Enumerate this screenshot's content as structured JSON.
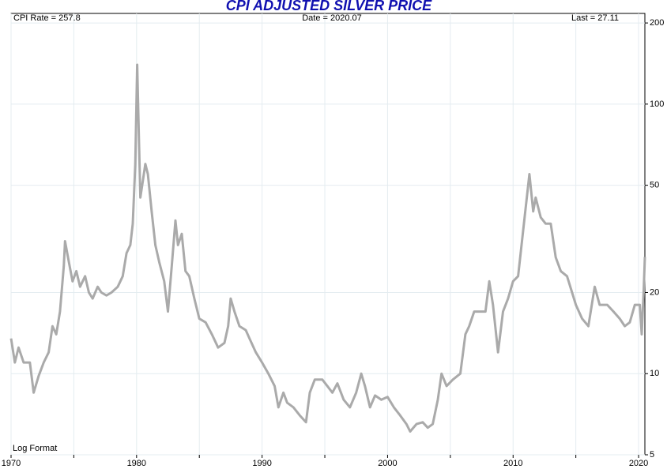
{
  "chart_data": {
    "type": "line",
    "title": "CPI ADJUSTED SILVER PRICE",
    "annotations": {
      "left": "CPI Rate = 257.8",
      "center": "Date = 2020.07",
      "right": "Last = 27.11",
      "bottom_left": "Log Format"
    },
    "log_scale": true,
    "grid": true,
    "xlim": [
      1970,
      2020.5
    ],
    "xticks": [
      1970,
      1980,
      1990,
      2000,
      2010,
      2020
    ],
    "xminorticks": [
      1975,
      1985,
      1995,
      2005,
      2015
    ],
    "ylim": [
      5,
      217
    ],
    "yticks": [
      5,
      10,
      20,
      50,
      100,
      200
    ],
    "series": [
      {
        "color": "#aaaaaa",
        "x": [
          1970.0,
          1970.3,
          1970.6,
          1971.0,
          1971.5,
          1971.8,
          1972.2,
          1972.6,
          1973.0,
          1973.3,
          1973.6,
          1973.9,
          1974.2,
          1974.3,
          1974.6,
          1974.9,
          1975.2,
          1975.5,
          1975.9,
          1976.2,
          1976.5,
          1976.9,
          1977.2,
          1977.6,
          1978.0,
          1978.5,
          1978.9,
          1979.2,
          1979.5,
          1979.7,
          1979.9,
          1980.05,
          1980.2,
          1980.3,
          1980.5,
          1980.7,
          1980.9,
          1981.2,
          1981.5,
          1981.8,
          1982.2,
          1982.5,
          1982.8,
          1983.1,
          1983.3,
          1983.6,
          1983.9,
          1984.2,
          1984.6,
          1985.0,
          1985.5,
          1986.0,
          1986.5,
          1987.0,
          1987.3,
          1987.5,
          1987.8,
          1988.2,
          1988.7,
          1989.0,
          1989.5,
          1990.0,
          1990.5,
          1991.0,
          1991.3,
          1991.7,
          1992.0,
          1992.5,
          1993.0,
          1993.5,
          1993.8,
          1994.2,
          1994.8,
          1995.2,
          1995.6,
          1996.0,
          1996.5,
          1997.0,
          1997.5,
          1997.9,
          1998.2,
          1998.6,
          1999.0,
          1999.5,
          2000.0,
          2000.5,
          2001.0,
          2001.5,
          2001.8,
          2002.3,
          2002.8,
          2003.2,
          2003.6,
          2004.0,
          2004.3,
          2004.7,
          2005.2,
          2005.8,
          2006.2,
          2006.5,
          2006.9,
          2007.3,
          2007.8,
          2008.1,
          2008.4,
          2008.8,
          2009.2,
          2009.6,
          2010.0,
          2010.4,
          2010.8,
          2011.3,
          2011.6,
          2011.8,
          2012.2,
          2012.6,
          2013.0,
          2013.4,
          2013.8,
          2014.3,
          2014.7,
          2015.0,
          2015.5,
          2016.0,
          2016.5,
          2016.9,
          2017.5,
          2018.0,
          2018.5,
          2018.9,
          2019.3,
          2019.7,
          2020.1,
          2020.25,
          2020.4,
          2020.5
        ],
        "values": [
          13.5,
          11,
          12.5,
          11,
          11,
          8.5,
          9.8,
          11,
          12,
          15,
          14,
          17,
          25,
          31,
          26,
          22,
          24,
          21,
          23,
          20,
          19,
          21,
          20,
          19.5,
          20,
          21,
          23,
          28,
          30,
          36,
          60,
          140,
          70,
          45,
          52,
          60,
          55,
          40,
          30,
          26,
          22,
          17,
          25,
          37,
          30,
          33,
          24,
          23,
          19,
          16,
          15.5,
          14,
          12.5,
          13,
          15,
          19,
          17,
          15,
          14.5,
          13.5,
          12,
          11,
          10,
          9,
          7.5,
          8.5,
          7.8,
          7.5,
          7,
          6.6,
          8.5,
          9.5,
          9.5,
          9,
          8.5,
          9.2,
          8,
          7.5,
          8.5,
          10,
          9,
          7.5,
          8.3,
          8,
          8.2,
          7.5,
          7,
          6.5,
          6.1,
          6.5,
          6.6,
          6.3,
          6.5,
          8,
          10,
          9,
          9.5,
          10,
          14,
          15,
          17,
          17,
          17,
          22,
          18,
          12,
          17,
          19,
          22,
          23,
          34,
          55,
          40,
          45,
          38,
          36,
          36,
          27,
          24,
          23,
          20,
          18,
          16,
          15,
          21,
          18,
          18,
          17,
          16,
          15,
          15.5,
          18,
          18,
          14,
          20,
          27.11
        ]
      }
    ]
  }
}
